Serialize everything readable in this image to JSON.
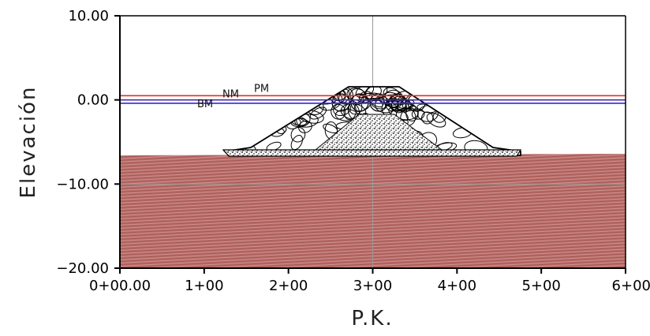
{
  "figure": {
    "xlabel": "P.K.",
    "ylabel": "Elevación",
    "y_ticks": [
      {
        "value": 10,
        "label": "10.00"
      },
      {
        "value": 0,
        "label": "0.00"
      },
      {
        "value": -10,
        "label": "−10.00"
      },
      {
        "value": -20,
        "label": "−20.00"
      }
    ],
    "x_ticks": [
      {
        "value": 0,
        "label": "0+00.00"
      },
      {
        "value": 100,
        "label": "1+00"
      },
      {
        "value": 200,
        "label": "2+00"
      },
      {
        "value": 300,
        "label": "3+00"
      },
      {
        "value": 400,
        "label": "4+00"
      },
      {
        "value": 500,
        "label": "5+00"
      },
      {
        "value": 600,
        "label": "6+00"
      }
    ],
    "water_levels": [
      {
        "label": "PM",
        "elevation": 0.5,
        "color": "#e0302a"
      },
      {
        "label": "NM",
        "elevation": 0.0,
        "color": "#4a2fa0"
      },
      {
        "label": "BM",
        "elevation": -0.4,
        "color": "#2e2ad6"
      }
    ],
    "seabed_color": "#b86a66",
    "grid": true
  }
}
